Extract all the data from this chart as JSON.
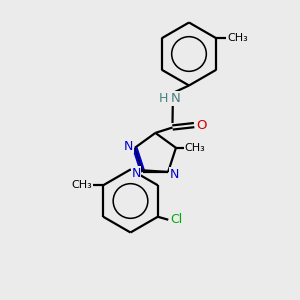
{
  "background_color": "#ebebeb",
  "atom_colors": {
    "N_blue": "#0000cc",
    "N_teal": "#4a8080",
    "O": "#cc0000",
    "Cl": "#00aa00"
  },
  "bond_color": "#000000",
  "bond_width": 1.6,
  "figsize": [
    3.0,
    3.0
  ],
  "dpi": 100,
  "xlim": [
    0,
    10
  ],
  "ylim": [
    0,
    10
  ]
}
